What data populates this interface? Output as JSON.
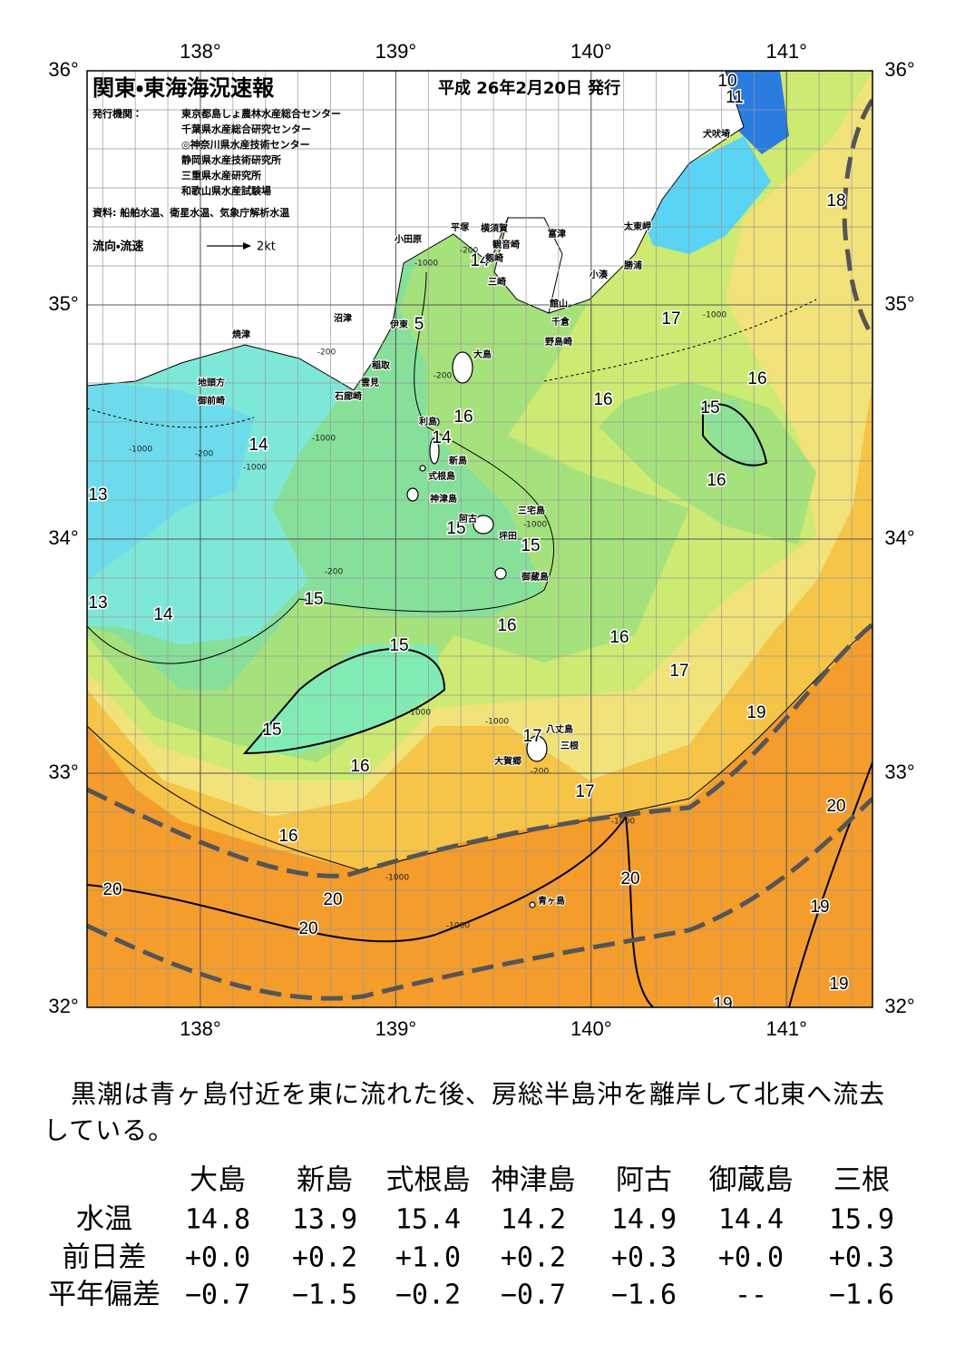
{
  "header": {
    "title": "関東・東海海況速報",
    "date": "平成 26年2月20日 発行",
    "publisher_label": "発行機関：",
    "publishers": [
      "東京都島しょ農林水産総合センター",
      "千葉県水産総合研究センター",
      "◎神奈川県水産技術センター",
      "静岡県水産技術研究所",
      "三重県水産研究所",
      "和歌山県水産試験場"
    ],
    "source": "資料: 船舶水温、衛星水温、気象庁解析水温",
    "legend_label": "流向・流速",
    "legend_speed": "2kt"
  },
  "map": {
    "lonlim": [
      137.42,
      141.44
    ],
    "latlim": [
      32,
      36
    ],
    "lon_ticks": [
      {
        "value": 138,
        "label": "138°"
      },
      {
        "value": 139,
        "label": "139°"
      },
      {
        "value": 140,
        "label": "140°"
      },
      {
        "value": 141,
        "label": "141°"
      }
    ],
    "lat_ticks": [
      {
        "value": 32,
        "label": "32°"
      },
      {
        "value": 33,
        "label": "33°"
      },
      {
        "value": 34,
        "label": "34°"
      },
      {
        "value": 35,
        "label": "35°"
      },
      {
        "value": 36,
        "label": "36°"
      }
    ],
    "contour_labels": [
      "10",
      "11",
      "18",
      "17",
      "16",
      "15",
      "16",
      "16",
      "16",
      "14",
      "14",
      "13",
      "15",
      "15",
      "13",
      "14",
      "15",
      "16",
      "16",
      "15",
      "17",
      "19",
      "15",
      "17",
      "16",
      "17",
      "20",
      "16",
      "20",
      "20",
      "20",
      "19",
      "20",
      "19",
      "19",
      "14",
      "5"
    ],
    "depth_labels": [
      "-200",
      "-1000",
      "-1000",
      "-200",
      "-200",
      "-1000",
      "-200",
      "-1000",
      "-1000",
      "-200",
      "-1000",
      "-1000",
      "-1000",
      "-200",
      "-1000",
      "-1000",
      "-1000"
    ],
    "places": [
      "犬吠埼",
      "太東岬",
      "勝浦",
      "小湊",
      "富津",
      "観音崎",
      "横須賀",
      "平塚",
      "小田原",
      "剱崎",
      "三崎",
      "館山",
      "千倉",
      "野島崎",
      "沼津",
      "伊東",
      "大島",
      "稲取",
      "雲見",
      "石廊崎",
      "焼津",
      "地頭方",
      "御前崎",
      "利島",
      "新島",
      "式根島",
      "神津島",
      "三宅島",
      "阿古",
      "坪田",
      "御蔵島",
      "八丈島",
      "三根",
      "大賀郷",
      "青ヶ島"
    ]
  },
  "paragraph": "黒潮は青ヶ島付近を東に流れた後、房総半島沖を離岸して北東へ流去している。",
  "table": {
    "columns": [
      "大島",
      "新島",
      "式根島",
      "神津島",
      "阿古",
      "御蔵島",
      "三根"
    ],
    "rows": [
      {
        "label": "水温",
        "values": [
          "14.8",
          "13.9",
          "15.4",
          "14.2",
          "14.9",
          "14.4",
          "15.9"
        ]
      },
      {
        "label": "前日差",
        "values": [
          "+0.0",
          "+0.2",
          "+1.0",
          "+0.2",
          "+0.3",
          "+0.0",
          "+0.3"
        ]
      },
      {
        "label": "平年偏差",
        "values": [
          "−0.7",
          "−1.5",
          "−0.2",
          "−0.7",
          "−1.6",
          "--",
          "−1.6"
        ]
      }
    ]
  }
}
